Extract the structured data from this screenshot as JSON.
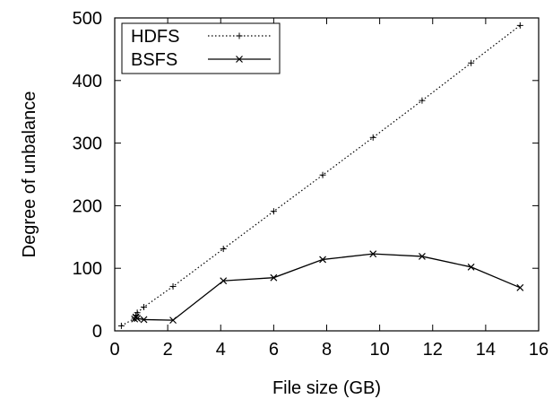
{
  "chart_data": {
    "type": "line",
    "xlabel": "File size (GB)",
    "ylabel": "Degree of unbalance",
    "xlim": [
      0,
      16
    ],
    "ylim": [
      0,
      500
    ],
    "xticks": [
      0,
      2,
      4,
      6,
      8,
      10,
      12,
      14,
      16
    ],
    "yticks": [
      0,
      100,
      200,
      300,
      400,
      500
    ],
    "grid": false,
    "legend_position": "top-left",
    "series": [
      {
        "name": "HDFS",
        "style": "dotted",
        "marker": "plus",
        "x": [
          0.25,
          0.75,
          0.8,
          0.85,
          1.1,
          2.2,
          4.1,
          6.0,
          7.85,
          9.75,
          11.6,
          13.45,
          15.3
        ],
        "y": [
          8,
          20,
          25,
          29,
          38,
          71,
          131,
          191,
          249,
          309,
          368,
          428,
          488
        ]
      },
      {
        "name": "BSFS",
        "style": "solid",
        "marker": "x",
        "x": [
          0.75,
          0.8,
          0.85,
          1.1,
          2.2,
          4.1,
          6.0,
          7.85,
          9.75,
          11.6,
          13.45,
          15.3
        ],
        "y": [
          19,
          22,
          20,
          18,
          17,
          80,
          85,
          114,
          123,
          119,
          102,
          69
        ]
      }
    ]
  }
}
